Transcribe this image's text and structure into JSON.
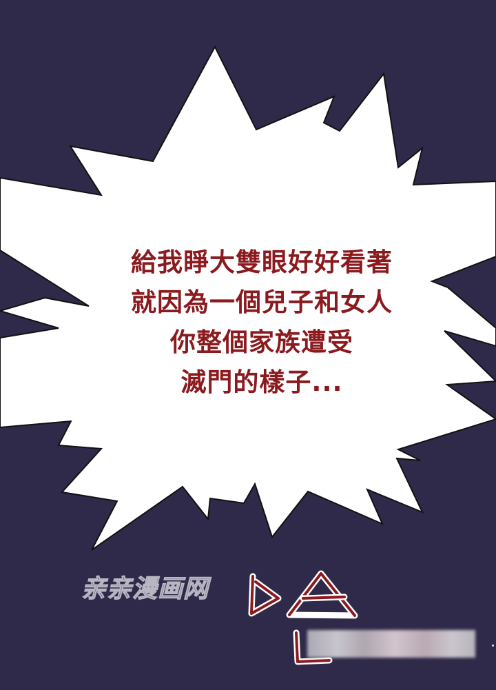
{
  "panel": {
    "background_color": "#302a4a",
    "burst_fill": "#ffffff",
    "burst_outline": "#111111"
  },
  "speech_bubble": {
    "text_color": "#8b1a1e",
    "lines": [
      "給我睜大雙眼好好看著",
      "就因為一個兒子和女人",
      "你整個家族遭受",
      "滅門的樣子..."
    ]
  },
  "watermark": {
    "text": "亲亲漫画网"
  },
  "sound_effect": {
    "stroke_color": "#8b1a1e"
  }
}
